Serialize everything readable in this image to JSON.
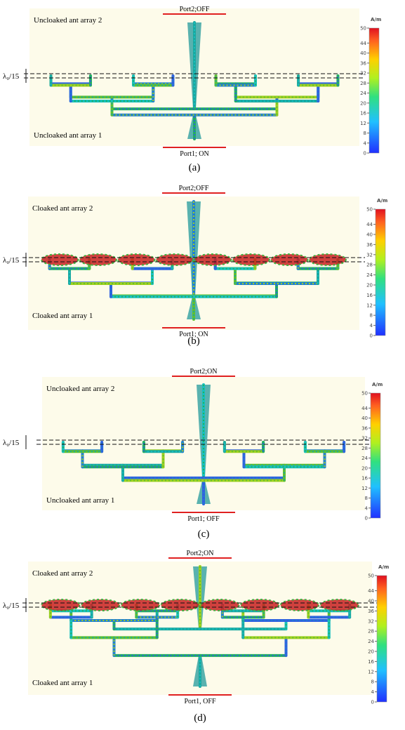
{
  "panels": [
    {
      "label": "(a)",
      "top_port": "Port2;OFF",
      "bottom_port": "Port1; ON",
      "top_array": "Uncloaked ant array 2",
      "bottom_array": "Uncloaked ant array 1",
      "spacing": "λ₀/15",
      "colorbar": {
        "unit": "A/m",
        "ticks": [
          0,
          4,
          8,
          12,
          16,
          20,
          24,
          28,
          32,
          36,
          40,
          44,
          50
        ]
      }
    },
    {
      "label": "(b)",
      "top_port": "Port2;OFF",
      "bottom_port": "Port1; ON",
      "top_array": "Cloaked ant array 2",
      "bottom_array": "Cloaked ant array 1",
      "spacing": "λ₀/15",
      "colorbar": {
        "unit": "A/m",
        "ticks": [
          0,
          4,
          8,
          12,
          16,
          20,
          24,
          28,
          32,
          36,
          40,
          44,
          50
        ]
      }
    },
    {
      "label": "(c)",
      "top_port": "Port2;ON",
      "bottom_port": "Port1; OFF",
      "top_array": "Uncloaked ant array 2",
      "bottom_array": "Uncloaked ant array 1",
      "spacing": "λ₀/15",
      "colorbar": {
        "unit": "A/m",
        "ticks": [
          0,
          4,
          8,
          12,
          16,
          20,
          24,
          28,
          32,
          36,
          40,
          44,
          50
        ]
      }
    },
    {
      "label": "(d)",
      "top_port": "Port2;ON",
      "bottom_port": "Port1, OFF",
      "top_array": "Cloaked ant array 2",
      "bottom_array": "Cloaked ant array 1",
      "spacing": "λ₀/15",
      "colorbar": {
        "unit": "A/m",
        "ticks": [
          0,
          4,
          8,
          12,
          16,
          20,
          24,
          28,
          32,
          36,
          40,
          44,
          50
        ]
      }
    }
  ]
}
